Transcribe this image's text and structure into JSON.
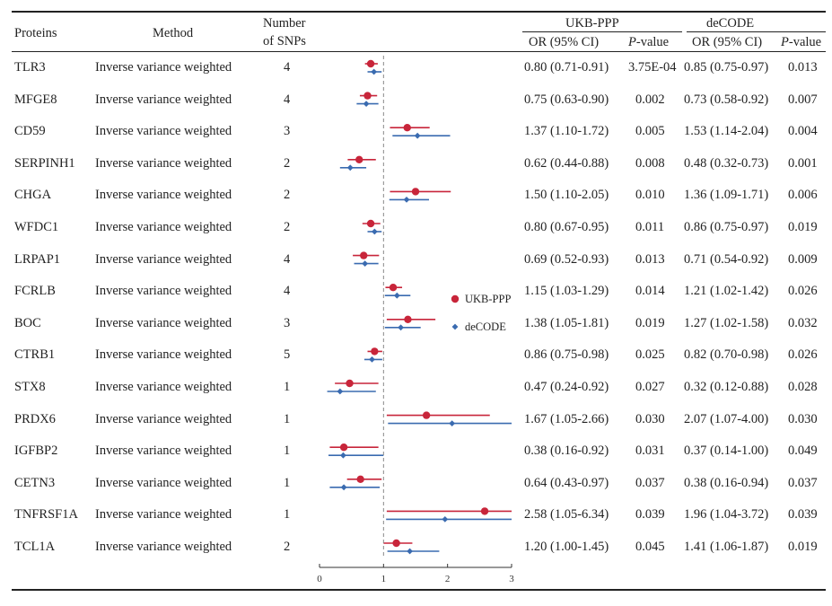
{
  "chart_data": {
    "type": "forest",
    "headers": {
      "proteins": "Proteins",
      "method": "Method",
      "snps_line1": "Number",
      "snps_line2": "of SNPs",
      "ukb_group": "UKB-PPP",
      "decode_group": "deCODE",
      "or_ci": "OR (95% CI)",
      "pvalue_p": "P",
      "pvalue_rest": "-value"
    },
    "legend": [
      {
        "name": "UKB-PPP",
        "color": "#c8253a",
        "marker": "circle"
      },
      {
        "name": "deCODE",
        "color": "#3a6bb0",
        "marker": "diamond"
      }
    ],
    "xaxis": {
      "ticks": [
        "0",
        "1",
        "2",
        "3"
      ],
      "xlim": [
        0,
        3
      ],
      "reference_line": 1
    },
    "rows": [
      {
        "protein": "TLR3",
        "method": "Inverse variance weighted",
        "snps": "4",
        "ukb": {
          "or": 0.8,
          "lo": 0.71,
          "hi": 0.91,
          "ci_text": "0.80 (0.71-0.91)",
          "p": "3.75E-04"
        },
        "decode": {
          "or": 0.85,
          "lo": 0.75,
          "hi": 0.97,
          "ci_text": "0.85 (0.75-0.97)",
          "p": "0.013"
        }
      },
      {
        "protein": "MFGE8",
        "method": "Inverse variance weighted",
        "snps": "4",
        "ukb": {
          "or": 0.75,
          "lo": 0.63,
          "hi": 0.9,
          "ci_text": "0.75 (0.63-0.90)",
          "p": "0.002"
        },
        "decode": {
          "or": 0.73,
          "lo": 0.58,
          "hi": 0.92,
          "ci_text": "0.73 (0.58-0.92)",
          "p": "0.007"
        }
      },
      {
        "protein": "CD59",
        "method": "Inverse variance weighted",
        "snps": "3",
        "ukb": {
          "or": 1.37,
          "lo": 1.1,
          "hi": 1.72,
          "ci_text": "1.37 (1.10-1.72)",
          "p": "0.005"
        },
        "decode": {
          "or": 1.53,
          "lo": 1.14,
          "hi": 2.04,
          "ci_text": "1.53 (1.14-2.04)",
          "p": "0.004"
        }
      },
      {
        "protein": "SERPINH1",
        "method": "Inverse variance weighted",
        "snps": "2",
        "ukb": {
          "or": 0.62,
          "lo": 0.44,
          "hi": 0.88,
          "ci_text": "0.62 (0.44-0.88)",
          "p": "0.008"
        },
        "decode": {
          "or": 0.48,
          "lo": 0.32,
          "hi": 0.73,
          "ci_text": "0.48 (0.32-0.73)",
          "p": "0.001"
        }
      },
      {
        "protein": "CHGA",
        "method": "Inverse variance weighted",
        "snps": "2",
        "ukb": {
          "or": 1.5,
          "lo": 1.1,
          "hi": 2.05,
          "ci_text": "1.50 (1.10-2.05)",
          "p": "0.010"
        },
        "decode": {
          "or": 1.36,
          "lo": 1.09,
          "hi": 1.71,
          "ci_text": "1.36 (1.09-1.71)",
          "p": "0.006"
        }
      },
      {
        "protein": "WFDC1",
        "method": "Inverse variance weighted",
        "snps": "2",
        "ukb": {
          "or": 0.8,
          "lo": 0.67,
          "hi": 0.95,
          "ci_text": "0.80 (0.67-0.95)",
          "p": "0.011"
        },
        "decode": {
          "or": 0.86,
          "lo": 0.75,
          "hi": 0.97,
          "ci_text": "0.86 (0.75-0.97)",
          "p": "0.019"
        }
      },
      {
        "protein": "LRPAP1",
        "method": "Inverse variance weighted",
        "snps": "4",
        "ukb": {
          "or": 0.69,
          "lo": 0.52,
          "hi": 0.93,
          "ci_text": "0.69 (0.52-0.93)",
          "p": "0.013"
        },
        "decode": {
          "or": 0.71,
          "lo": 0.54,
          "hi": 0.92,
          "ci_text": "0.71 (0.54-0.92)",
          "p": "0.009"
        }
      },
      {
        "protein": "FCRLB",
        "method": "Inverse variance weighted",
        "snps": "4",
        "ukb": {
          "or": 1.15,
          "lo": 1.03,
          "hi": 1.29,
          "ci_text": "1.15 (1.03-1.29)",
          "p": "0.014"
        },
        "decode": {
          "or": 1.21,
          "lo": 1.02,
          "hi": 1.42,
          "ci_text": "1.21 (1.02-1.42)",
          "p": "0.026"
        }
      },
      {
        "protein": "BOC",
        "method": "Inverse variance weighted",
        "snps": "3",
        "ukb": {
          "or": 1.38,
          "lo": 1.05,
          "hi": 1.81,
          "ci_text": "1.38 (1.05-1.81)",
          "p": "0.019"
        },
        "decode": {
          "or": 1.27,
          "lo": 1.02,
          "hi": 1.58,
          "ci_text": "1.27 (1.02-1.58)",
          "p": "0.032"
        }
      },
      {
        "protein": "CTRB1",
        "method": "Inverse variance weighted",
        "snps": "5",
        "ukb": {
          "or": 0.86,
          "lo": 0.75,
          "hi": 0.98,
          "ci_text": "0.86 (0.75-0.98)",
          "p": "0.025"
        },
        "decode": {
          "or": 0.82,
          "lo": 0.7,
          "hi": 0.98,
          "ci_text": "0.82 (0.70-0.98)",
          "p": "0.026"
        }
      },
      {
        "protein": "STX8",
        "method": "Inverse variance weighted",
        "snps": "1",
        "ukb": {
          "or": 0.47,
          "lo": 0.24,
          "hi": 0.92,
          "ci_text": "0.47 (0.24-0.92)",
          "p": "0.027"
        },
        "decode": {
          "or": 0.32,
          "lo": 0.12,
          "hi": 0.88,
          "ci_text": "0.32 (0.12-0.88)",
          "p": "0.028"
        }
      },
      {
        "protein": "PRDX6",
        "method": "Inverse variance weighted",
        "snps": "1",
        "ukb": {
          "or": 1.67,
          "lo": 1.05,
          "hi": 2.66,
          "ci_text": "1.67 (1.05-2.66)",
          "p": "0.030"
        },
        "decode": {
          "or": 2.07,
          "lo": 1.07,
          "hi": 4.0,
          "ci_text": "2.07 (1.07-4.00)",
          "p": "0.030"
        }
      },
      {
        "protein": "IGFBP2",
        "method": "Inverse variance weighted",
        "snps": "1",
        "ukb": {
          "or": 0.38,
          "lo": 0.16,
          "hi": 0.92,
          "ci_text": "0.38 (0.16-0.92)",
          "p": "0.031"
        },
        "decode": {
          "or": 0.37,
          "lo": 0.14,
          "hi": 1.0,
          "ci_text": "0.37 (0.14-1.00)",
          "p": "0.049"
        }
      },
      {
        "protein": "CETN3",
        "method": "Inverse variance weighted",
        "snps": "1",
        "ukb": {
          "or": 0.64,
          "lo": 0.43,
          "hi": 0.97,
          "ci_text": "0.64 (0.43-0.97)",
          "p": "0.037"
        },
        "decode": {
          "or": 0.38,
          "lo": 0.16,
          "hi": 0.94,
          "ci_text": "0.38 (0.16-0.94)",
          "p": "0.037"
        }
      },
      {
        "protein": "TNFRSF1A",
        "method": "Inverse variance weighted",
        "snps": "1",
        "ukb": {
          "or": 2.58,
          "lo": 1.05,
          "hi": 6.34,
          "ci_text": "2.58 (1.05-6.34)",
          "p": "0.039"
        },
        "decode": {
          "or": 1.96,
          "lo": 1.04,
          "hi": 3.72,
          "ci_text": "1.96 (1.04-3.72)",
          "p": "0.039"
        }
      },
      {
        "protein": "TCL1A",
        "method": "Inverse variance weighted",
        "snps": "2",
        "ukb": {
          "or": 1.2,
          "lo": 1.0,
          "hi": 1.45,
          "ci_text": "1.20 (1.00-1.45)",
          "p": "0.045"
        },
        "decode": {
          "or": 1.41,
          "lo": 1.06,
          "hi": 1.87,
          "ci_text": "1.41 (1.06-1.87)",
          "p": "0.019"
        }
      }
    ]
  }
}
